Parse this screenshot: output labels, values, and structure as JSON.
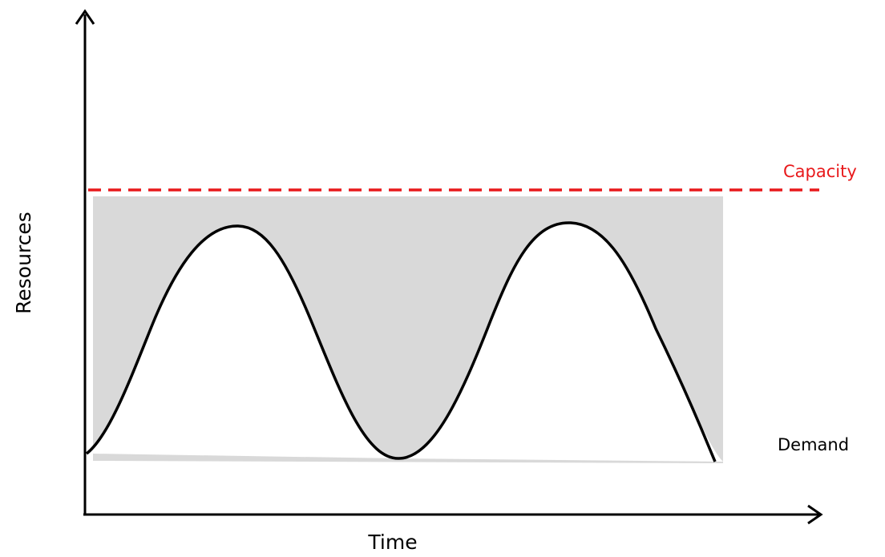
{
  "labels": {
    "x_axis": "Time",
    "y_axis": "Resources",
    "capacity": "Capacity",
    "demand": "Demand"
  },
  "colors": {
    "capacity_line": "#e8191b",
    "shaded_area": "#d9d9d9",
    "demand_curve": "#000000",
    "axes": "#000000"
  }
}
